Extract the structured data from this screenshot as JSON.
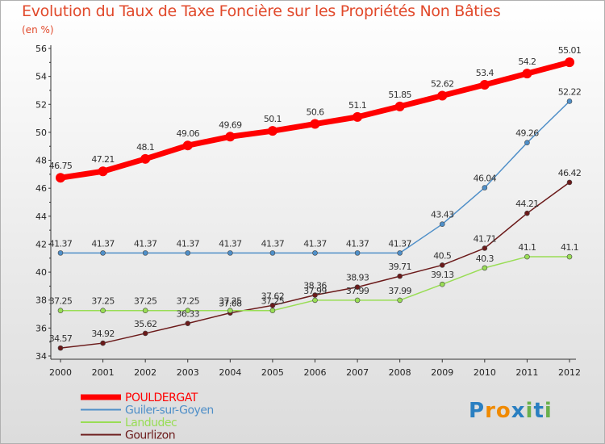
{
  "header": {
    "title": "Evolution du Taux de Taxe Foncière sur les Propriétés Non Bâties",
    "unit": "(en %)"
  },
  "brand": {
    "letters": [
      "P",
      "r",
      "o",
      "x",
      "i",
      "t",
      "i"
    ],
    "colors": [
      "#2a7fc1",
      "#f08a00",
      "#f08a00",
      "#2a7fc1",
      "#6ab04c",
      "#2a7fc1",
      "#6ab04c"
    ]
  },
  "chart_data": {
    "type": "line",
    "x": [
      "2000",
      "2001",
      "2002",
      "2003",
      "2004",
      "2005",
      "2006",
      "2007",
      "2008",
      "2009",
      "2010",
      "2011",
      "2012"
    ],
    "ylim": [
      34,
      56
    ],
    "yticks": [
      "34",
      "36",
      "38",
      "40",
      "42",
      "44",
      "46",
      "48",
      "50",
      "52",
      "54",
      "56"
    ],
    "grid": false,
    "legend": "bottom-left",
    "series": [
      {
        "name": "POULDERGAT",
        "color": "#ff0000",
        "width": 7,
        "marker": 6,
        "values": [
          46.75,
          47.21,
          48.1,
          49.06,
          49.69,
          50.1,
          50.6,
          51.1,
          51.85,
          52.62,
          53.4,
          54.2,
          55.01
        ],
        "labels": [
          "46.75",
          "47.21",
          "48.1",
          "49.06",
          "49.69",
          "50.1",
          "50.6",
          "51.1",
          "51.85",
          "52.62",
          "53.4",
          "54.2",
          "55.01"
        ]
      },
      {
        "name": "Guiler-sur-Goyen",
        "color": "#4f8fc8",
        "width": 1.5,
        "marker": 3,
        "values": [
          41.37,
          41.37,
          41.37,
          41.37,
          41.37,
          41.37,
          41.37,
          41.37,
          41.37,
          43.43,
          46.04,
          49.26,
          52.22
        ],
        "labels": [
          "41.37",
          "41.37",
          "41.37",
          "41.37",
          "41.37",
          "41.37",
          "41.37",
          "41.37",
          "41.37",
          "43.43",
          "46.04",
          "49.26",
          "52.22"
        ]
      },
      {
        "name": "Landudec",
        "color": "#99dd55",
        "width": 1.5,
        "marker": 3,
        "values": [
          37.25,
          37.25,
          37.25,
          37.25,
          37.25,
          37.25,
          37.99,
          37.99,
          37.99,
          39.13,
          40.3,
          41.1,
          41.1
        ],
        "labels": [
          "37.25",
          "37.25",
          "37.25",
          "37.25",
          "37.25",
          "37.25",
          "37.99",
          "37.99",
          "37.99",
          "39.13",
          "40.3",
          "41.1",
          "41.1"
        ]
      },
      {
        "name": "Gourlizon",
        "color": "#6b1a1a",
        "width": 1.5,
        "marker": 3,
        "values": [
          34.57,
          34.92,
          35.62,
          36.33,
          37.08,
          37.62,
          38.36,
          38.93,
          39.71,
          40.5,
          41.71,
          44.21,
          46.42
        ],
        "labels": [
          "34.57",
          "34.92",
          "35.62",
          "36.33",
          "37.08",
          "37.62",
          "38.36",
          "38.93",
          "39.71",
          "40.5",
          "41.71",
          "44.21",
          "46.42"
        ]
      }
    ]
  }
}
